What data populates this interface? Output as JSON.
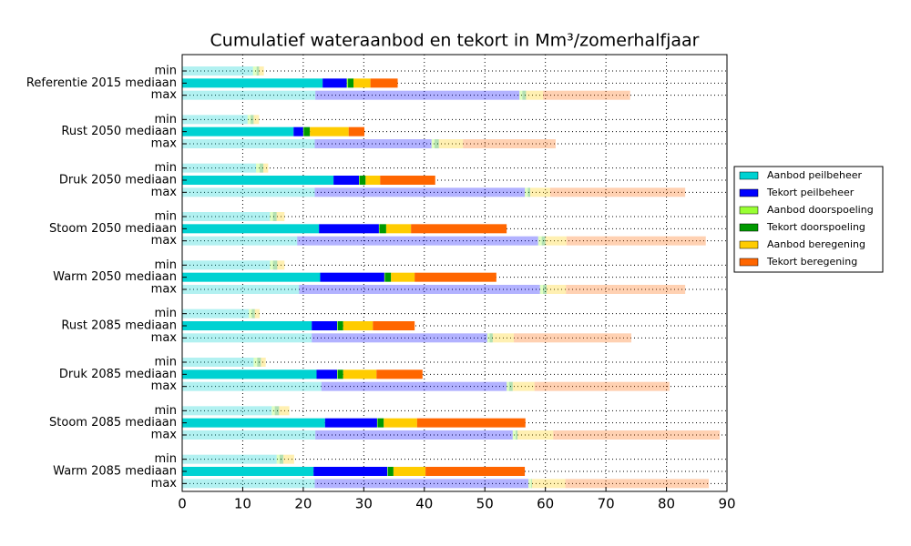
{
  "chart_data": {
    "type": "stacked_barh",
    "title": "Cumulatief wateraanbod en tekort in Mm³/zomerhalfjaar",
    "categories": [
      "min",
      "Referentie 2015 mediaan",
      "max",
      "min",
      "Rust 2050 mediaan",
      "max",
      "min",
      "Druk 2050 mediaan",
      "max",
      "min",
      "Stoom 2050 mediaan",
      "max",
      "min",
      "Warm 2050 mediaan",
      "max",
      "min",
      "Rust 2085 mediaan",
      "max",
      "min",
      "Druk 2085 mediaan",
      "max",
      "min",
      "Stoom 2085 mediaan",
      "max",
      "min",
      "Warm 2085 mediaan",
      "max"
    ],
    "series": [
      {
        "name": "Aanbod peilbeheer",
        "color": "#00d2d2",
        "values": [
          11.7,
          23.2,
          22.0,
          10.8,
          18.4,
          21.9,
          12.2,
          25.0,
          21.9,
          14.5,
          22.6,
          19.0,
          14.5,
          22.8,
          19.3,
          11.0,
          21.4,
          21.4,
          11.8,
          22.2,
          23.0,
          14.8,
          23.6,
          22.0,
          15.6,
          21.7,
          21.9
        ]
      },
      {
        "name": "Tekort peilbeheer",
        "color": "#0000ff",
        "values": [
          0,
          4.0,
          33.7,
          0,
          1.6,
          19.3,
          0,
          4.2,
          34.7,
          0,
          9.9,
          39.8,
          0,
          10.6,
          39.8,
          0,
          4.2,
          29.0,
          0,
          3.4,
          30.6,
          0,
          8.6,
          32.6,
          0,
          12.2,
          35.3
        ]
      },
      {
        "name": "Aanbod doorspoeling",
        "color": "#99ff33",
        "values": [
          0.6,
          0.2,
          0.5,
          0.5,
          0.1,
          0.5,
          0.6,
          0.1,
          0.5,
          0.5,
          0.1,
          0.6,
          0.5,
          0.1,
          0.5,
          0.5,
          0.1,
          0.4,
          0.6,
          0.1,
          0.4,
          0.5,
          0.1,
          0.5,
          0.5,
          0.1,
          0.5
        ]
      },
      {
        "name": "Tekort doorspoeling",
        "color": "#009900",
        "values": [
          0.4,
          0.9,
          0.6,
          0.5,
          1.0,
          0.7,
          0.6,
          1.0,
          0.4,
          0.6,
          1.1,
          0.6,
          0.7,
          1.0,
          0.6,
          0.5,
          0.9,
          0.5,
          0.6,
          0.9,
          0.6,
          0.7,
          1.0,
          0.3,
          0.6,
          0.9,
          0.1
        ]
      },
      {
        "name": "Aanbod beregening",
        "color": "#ffcc00",
        "values": [
          0.8,
          2.8,
          2.8,
          0.9,
          6.4,
          4.0,
          0.8,
          2.4,
          3.3,
          1.3,
          4.1,
          3.5,
          1.2,
          3.9,
          3.2,
          0.8,
          4.9,
          3.5,
          0.8,
          5.5,
          3.6,
          1.7,
          5.5,
          5.9,
          1.8,
          5.3,
          5.5
        ]
      },
      {
        "name": "Tekort beregening",
        "color": "#ff6600",
        "values": [
          0,
          4.5,
          14.4,
          0,
          2.6,
          15.3,
          0,
          9.1,
          22.3,
          0,
          15.8,
          23.0,
          0,
          13.5,
          19.7,
          0,
          6.9,
          19.4,
          0,
          7.6,
          22.3,
          0,
          17.9,
          27.5,
          0,
          16.4,
          23.7
        ]
      }
    ],
    "xlim": [
      0,
      90
    ],
    "xticks": [
      0,
      10,
      20,
      30,
      40,
      50,
      60,
      70,
      80,
      90
    ],
    "grid": true,
    "legend": "right"
  }
}
